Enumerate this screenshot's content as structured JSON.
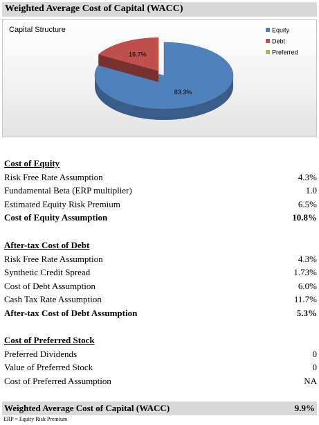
{
  "title": "Weighted Average Cost of Capital (WACC)",
  "chart_data": {
    "type": "pie",
    "title": "Capital Structure",
    "categories": [
      "Equity",
      "Debt",
      "Preferred"
    ],
    "values": [
      83.3,
      16.7,
      0
    ],
    "value_labels": [
      "83.3%",
      "16.7%",
      ""
    ],
    "colors": [
      "#4f81bd",
      "#c0504d",
      "#9bbb59"
    ],
    "legend_position": "right",
    "style": "3d"
  },
  "cost_of_equity": {
    "heading": "Cost of Equity",
    "rows": [
      {
        "label": "Risk Free Rate Assumption",
        "value": "4.3%"
      },
      {
        "label": "Fundamental Beta (ERP multiplier)",
        "value": "1.0"
      },
      {
        "label": "Estimated Equity Risk Premium",
        "value": "6.5%"
      }
    ],
    "total": {
      "label": "Cost of Equity Assumption",
      "value": "10.8%"
    }
  },
  "cost_of_debt": {
    "heading": "After-tax Cost of Debt",
    "rows": [
      {
        "label": "Risk Free Rate Assumption",
        "value": "4.3%"
      },
      {
        "label": "Synthetic Credit Spread",
        "value": "1.73%"
      },
      {
        "label": "Cost of Debt Assumption",
        "value": "6.0%"
      },
      {
        "label": "Cash Tax Rate Assumption",
        "value": "11.7%"
      }
    ],
    "total": {
      "label": "After-tax Cost of Debt Assumption",
      "value": "5.3%"
    }
  },
  "cost_of_preferred": {
    "heading": "Cost of Preferred Stock",
    "rows": [
      {
        "label": "Preferred Dividends",
        "value": "0"
      },
      {
        "label": "Value of Preferred Stock",
        "value": "0"
      },
      {
        "label": "Cost of Preferred Assumption",
        "value": "NA"
      }
    ]
  },
  "wacc": {
    "label": "Weighted Average Cost of Capital (WACC)",
    "value": "9.9%"
  },
  "footnote": "ERP = Equity Risk Premium"
}
